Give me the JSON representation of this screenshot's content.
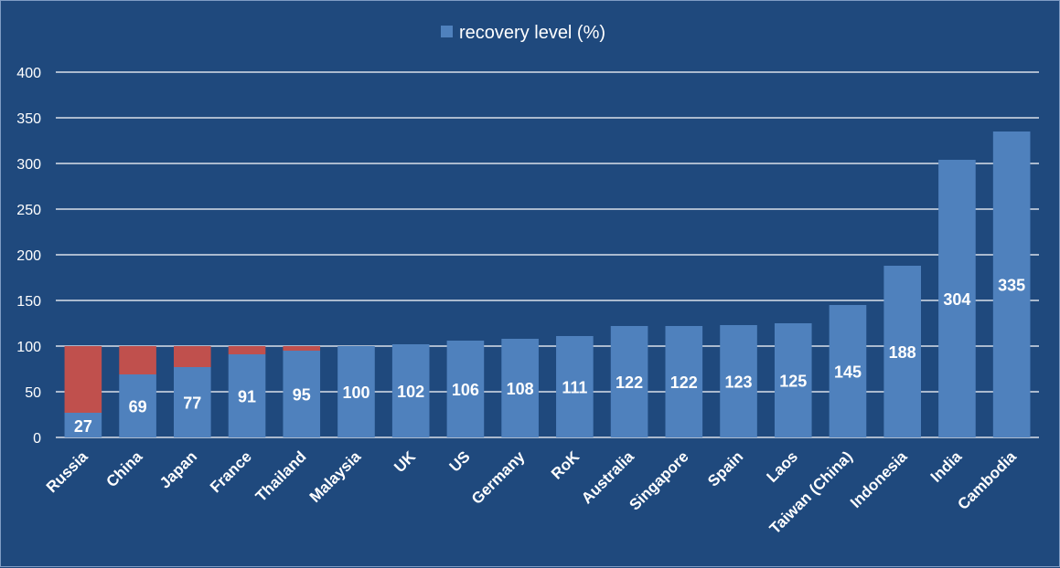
{
  "chart_data": {
    "type": "bar",
    "stacked": true,
    "categories": [
      "Russia",
      "China",
      "Japan",
      "France",
      "Thailand",
      "Malaysia",
      "UK",
      "US",
      "Germany",
      "RoK",
      "Australia",
      "Singapore",
      "Spain",
      "Laos",
      "Taiwan (China)",
      "Indonesia",
      "India",
      "Cambodia"
    ],
    "series": [
      {
        "name": "recovery level (%)",
        "color": "#4f81bd",
        "values": [
          27,
          69,
          77,
          91,
          95,
          100,
          102,
          106,
          108,
          111,
          122,
          122,
          123,
          125,
          145,
          188,
          304,
          335
        ]
      },
      {
        "color": "#c0504d",
        "values": [
          73,
          31,
          23,
          9,
          5,
          0,
          0,
          0,
          0,
          0,
          0,
          0,
          0,
          0,
          0,
          0,
          0,
          0
        ]
      }
    ],
    "data_labels": [
      "27",
      "69",
      "77",
      "91",
      "95",
      "100",
      "102",
      "106",
      "108",
      "111",
      "122",
      "122",
      "123",
      "125",
      "145",
      "188",
      "304",
      "335"
    ],
    "ylim": [
      0,
      400
    ],
    "yticks": [
      "0",
      "50",
      "100",
      "150",
      "200",
      "250",
      "300",
      "350",
      "400"
    ],
    "grid": true,
    "legend_position": "top",
    "legend": [
      "recovery level (%)"
    ],
    "background": "#1f497d"
  }
}
